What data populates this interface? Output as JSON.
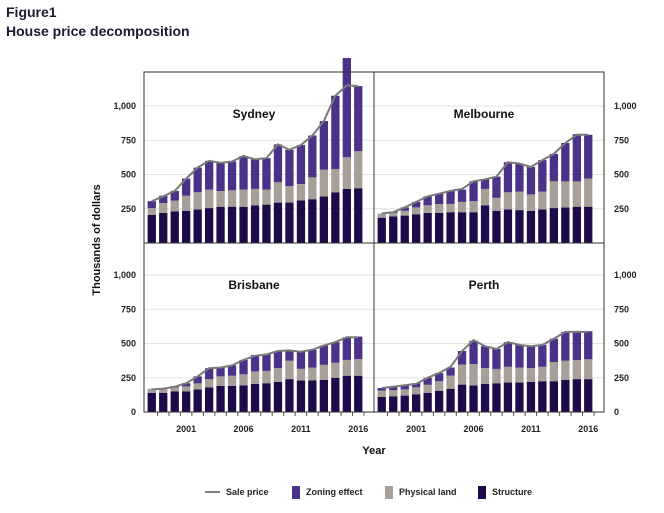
{
  "figure": {
    "label": "Figure1",
    "title": "House price decomposition"
  },
  "legend": {
    "items": [
      {
        "key": "sale",
        "label": "Sale price",
        "color": "#808080",
        "kind": "line"
      },
      {
        "key": "zoning",
        "label": "Zoning effect",
        "color": "#4b3288",
        "kind": "bar"
      },
      {
        "key": "land",
        "label": "Physical land",
        "color": "#a79f98",
        "kind": "bar"
      },
      {
        "key": "structure",
        "label": "Structure",
        "color": "#1e0a4a",
        "kind": "bar"
      }
    ]
  },
  "chart_data": [
    {
      "type": "bar",
      "stacked": true,
      "title": "Sydney",
      "xlabel": "Year",
      "ylabel": "Thousands of dollars",
      "ylim": [
        0,
        1250
      ],
      "yticks": [
        250,
        500,
        750,
        1000
      ],
      "x": [
        1998,
        1999,
        2000,
        2001,
        2002,
        2003,
        2004,
        2005,
        2006,
        2007,
        2008,
        2009,
        2010,
        2011,
        2012,
        2013,
        2014,
        2015,
        2016
      ],
      "series": [
        {
          "name": "Structure",
          "values": [
            205,
            220,
            230,
            235,
            245,
            255,
            265,
            265,
            265,
            275,
            280,
            295,
            295,
            310,
            320,
            340,
            370,
            395,
            400
          ]
        },
        {
          "name": "Physical land",
          "values": [
            50,
            70,
            80,
            110,
            125,
            135,
            115,
            120,
            125,
            120,
            110,
            150,
            120,
            120,
            160,
            195,
            170,
            230,
            270
          ]
        },
        {
          "name": "Zoning effect",
          "values": [
            50,
            55,
            70,
            125,
            180,
            210,
            205,
            210,
            245,
            215,
            230,
            275,
            265,
            285,
            305,
            355,
            535,
            725,
            475
          ]
        },
        {
          "name": "Sale price",
          "values": [
            305,
            340,
            380,
            470,
            550,
            600,
            585,
            595,
            635,
            610,
            620,
            720,
            680,
            715,
            785,
            890,
            1075,
            1150,
            1145
          ]
        }
      ]
    },
    {
      "type": "bar",
      "stacked": true,
      "title": "Melbourne",
      "xlabel": "Year",
      "ylabel": "Thousands of dollars",
      "ylim": [
        0,
        1250
      ],
      "yticks": [
        250,
        500,
        750,
        1000
      ],
      "x": [
        1998,
        1999,
        2000,
        2001,
        2002,
        2003,
        2004,
        2005,
        2006,
        2007,
        2008,
        2009,
        2010,
        2011,
        2012,
        2013,
        2014,
        2015,
        2016
      ],
      "series": [
        {
          "name": "Structure",
          "values": [
            185,
            195,
            200,
            210,
            220,
            220,
            225,
            225,
            225,
            275,
            235,
            245,
            240,
            235,
            245,
            255,
            260,
            265,
            265
          ]
        },
        {
          "name": "Physical land",
          "values": [
            30,
            25,
            35,
            50,
            55,
            65,
            60,
            75,
            80,
            120,
            95,
            125,
            135,
            120,
            130,
            195,
            190,
            185,
            205
          ]
        },
        {
          "name": "Zoning effect",
          "values": [
            0,
            10,
            25,
            40,
            65,
            75,
            95,
            90,
            145,
            70,
            155,
            220,
            205,
            200,
            230,
            200,
            280,
            345,
            320
          ]
        },
        {
          "name": "Sale price",
          "values": [
            215,
            225,
            260,
            300,
            340,
            360,
            380,
            395,
            450,
            465,
            485,
            590,
            580,
            555,
            605,
            650,
            730,
            790,
            790
          ]
        }
      ]
    },
    {
      "type": "bar",
      "stacked": true,
      "title": "Brisbane",
      "xlabel": "Year",
      "ylabel": "Thousands of dollars",
      "ylim": [
        0,
        1250
      ],
      "yticks": [
        0,
        250,
        500,
        750,
        1000
      ],
      "x": [
        1998,
        1999,
        2000,
        2001,
        2002,
        2003,
        2004,
        2005,
        2006,
        2007,
        2008,
        2009,
        2010,
        2011,
        2012,
        2013,
        2014,
        2015,
        2016
      ],
      "series": [
        {
          "name": "Structure",
          "values": [
            140,
            140,
            150,
            150,
            165,
            180,
            190,
            190,
            195,
            205,
            210,
            220,
            240,
            230,
            230,
            235,
            250,
            265,
            265
          ]
        },
        {
          "name": "Physical land",
          "values": [
            30,
            30,
            30,
            35,
            45,
            60,
            70,
            75,
            80,
            90,
            90,
            100,
            135,
            85,
            95,
            110,
            110,
            115,
            120
          ]
        },
        {
          "name": "Zoning effect",
          "values": [
            0,
            0,
            10,
            25,
            50,
            80,
            65,
            75,
            105,
            120,
            120,
            125,
            75,
            125,
            130,
            140,
            150,
            165,
            165
          ]
        },
        {
          "name": "Sale price",
          "values": [
            165,
            170,
            185,
            210,
            260,
            320,
            325,
            340,
            380,
            410,
            420,
            445,
            450,
            440,
            455,
            485,
            510,
            545,
            545
          ]
        }
      ]
    },
    {
      "type": "bar",
      "stacked": true,
      "title": "Perth",
      "xlabel": "Year",
      "ylabel": "Thousands of dollars",
      "ylim": [
        0,
        1250
      ],
      "yticks": [
        0,
        250,
        500,
        750,
        1000
      ],
      "x": [
        1998,
        1999,
        2000,
        2001,
        2002,
        2003,
        2004,
        2005,
        2006,
        2007,
        2008,
        2009,
        2010,
        2011,
        2012,
        2013,
        2014,
        2015,
        2016
      ],
      "series": [
        {
          "name": "Structure",
          "values": [
            110,
            115,
            120,
            130,
            140,
            155,
            170,
            200,
            195,
            205,
            210,
            215,
            215,
            220,
            225,
            225,
            235,
            240,
            240
          ]
        },
        {
          "name": "Physical land",
          "values": [
            45,
            45,
            45,
            50,
            60,
            70,
            95,
            145,
            155,
            115,
            105,
            115,
            110,
            100,
            105,
            140,
            140,
            140,
            145
          ]
        },
        {
          "name": "Zoning effect",
          "values": [
            20,
            25,
            30,
            30,
            50,
            60,
            60,
            100,
            170,
            160,
            145,
            180,
            165,
            160,
            160,
            170,
            210,
            205,
            205
          ]
        },
        {
          "name": "Sale price",
          "values": [
            175,
            185,
            195,
            205,
            250,
            285,
            330,
            445,
            525,
            480,
            460,
            510,
            490,
            480,
            490,
            535,
            585,
            585,
            585
          ]
        }
      ]
    }
  ],
  "axes": {
    "xticks": [
      "2001",
      "2006",
      "2011",
      "2016"
    ],
    "ytick_labels": {
      "0": "0",
      "250": "250",
      "500": "500",
      "750": "750",
      "1000": "1,000"
    },
    "xlabel": "Year",
    "ylabel": "Thousands of dollars"
  }
}
